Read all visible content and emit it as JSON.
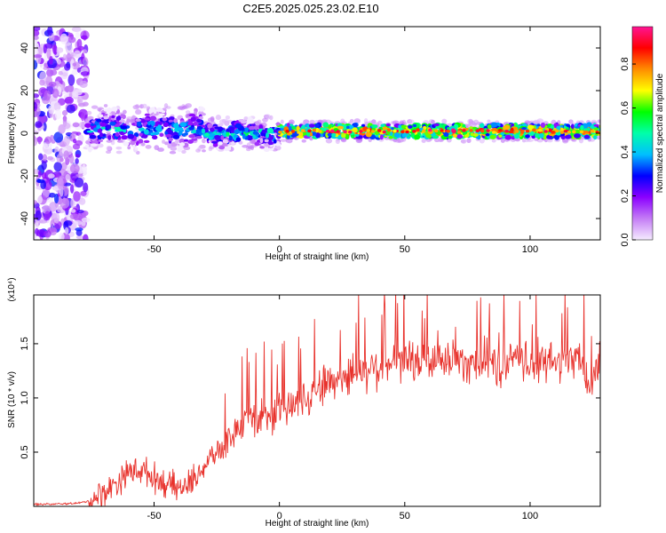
{
  "title": "C2E5.2025.025.23.02.E10",
  "colors": {
    "snr_line": "#e8322c",
    "colormap": [
      "#f5ecff",
      "#c47cf5",
      "#8b00ff",
      "#0000ff",
      "#00bfff",
      "#00ffaa",
      "#00ff00",
      "#ffff00",
      "#ff8c00",
      "#ff0000",
      "#ff1493"
    ]
  },
  "chart_data": [
    {
      "type": "heatmap",
      "title": "",
      "xlabel": "Height of straight line (km)",
      "ylabel": "Frequency (Hz)",
      "xlim": [
        -98,
        128
      ],
      "ylim": [
        -50,
        50
      ],
      "x_ticks": [
        -50,
        0,
        50,
        100
      ],
      "y_ticks": [
        -40,
        -20,
        0,
        20,
        40
      ],
      "x_tick_labels": [
        "-50",
        "0",
        "50",
        "100"
      ],
      "y_tick_labels": [
        "-40",
        "-20",
        "0",
        "20",
        "40"
      ],
      "colorbar": {
        "label": "Normalized spectral amplitude",
        "range": [
          0,
          0.97
        ],
        "ticks": [
          0.0,
          0.2,
          0.4,
          0.6,
          0.8
        ],
        "tick_labels": [
          "0.0",
          "0.2",
          "0.4",
          "0.6",
          "0.8"
        ]
      },
      "features": [
        {
          "x_range": [
            -98,
            -77
          ],
          "description_y_range": [
            -50,
            50
          ],
          "amplitude": 0.15
        },
        {
          "x_range": [
            -77,
            -30
          ],
          "y_center": 2,
          "y_halfwidth": 7,
          "amplitude": 0.45
        },
        {
          "x_range": [
            -30,
            0
          ],
          "y_center": 0,
          "y_halfwidth": 5,
          "amplitude": 0.5
        },
        {
          "x_range": [
            0,
            128
          ],
          "y_center": 1,
          "y_halfwidth": 3,
          "amplitude": 0.85
        }
      ]
    },
    {
      "type": "line",
      "title": "",
      "xlabel": "Height of straight line (km)",
      "ylabel": "SNR (10 * v/v)",
      "y_multiplier": "(x10⁴)",
      "xlim": [
        -98,
        128
      ],
      "ylim": [
        0,
        1.95
      ],
      "x_ticks": [
        -50,
        0,
        50,
        100
      ],
      "y_ticks": [
        0.5,
        1.0,
        1.5
      ],
      "x_tick_labels": [
        "-50",
        "0",
        "50",
        "100"
      ],
      "y_tick_labels": [
        "0.5",
        "1.0",
        "1.5"
      ],
      "series": [
        {
          "x": [
            -98,
            -90,
            -80,
            -76,
            -72,
            -68,
            -64,
            -60,
            -56,
            -52,
            -48,
            -44,
            -40,
            -36,
            -32,
            -28,
            -24,
            -20,
            -16,
            -12,
            -8,
            -4,
            0,
            5,
            10,
            15,
            20,
            25,
            30,
            35,
            40,
            45,
            50,
            55,
            60,
            65,
            70,
            75,
            80,
            85,
            88,
            90,
            95,
            100,
            105,
            110,
            115,
            120,
            124,
            128
          ],
          "values": [
            0.02,
            0.02,
            0.03,
            0.05,
            0.1,
            0.16,
            0.24,
            0.32,
            0.34,
            0.3,
            0.24,
            0.2,
            0.16,
            0.2,
            0.32,
            0.42,
            0.52,
            0.62,
            0.74,
            0.8,
            0.82,
            0.86,
            0.88,
            0.92,
            1.02,
            1.1,
            1.14,
            1.2,
            1.24,
            1.26,
            1.3,
            1.32,
            1.34,
            1.33,
            1.34,
            1.33,
            1.35,
            1.34,
            1.34,
            1.35,
            1.2,
            1.34,
            1.33,
            1.33,
            1.32,
            1.33,
            1.34,
            1.34,
            1.1,
            1.35
          ]
        }
      ]
    }
  ]
}
